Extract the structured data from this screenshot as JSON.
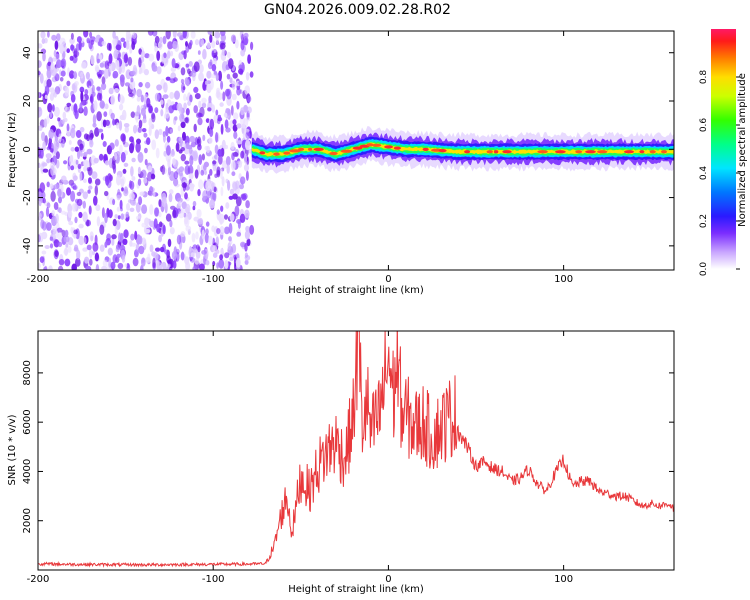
{
  "title": "GN04.2026.009.02.28.R02",
  "chart_data": [
    {
      "type": "heatmap",
      "xlabel": "Height of straight line (km)",
      "ylabel": "Frequency (Hz)",
      "xlim": [
        -200,
        163
      ],
      "ylim": [
        -50,
        49
      ],
      "xticks": [
        "-200",
        "-100",
        "0",
        "100"
      ],
      "xtick_values": [
        -200,
        -100,
        0,
        100
      ],
      "yticks": [
        "40",
        "20",
        "0",
        "-20",
        "-40"
      ],
      "ytick_values": [
        40,
        20,
        0,
        -20,
        -40
      ],
      "noise_region_x": [
        -200,
        -78
      ],
      "signal_ridge": {
        "x": [
          -78,
          -70,
          -60,
          -50,
          -40,
          -30,
          -20,
          -10,
          0,
          10,
          20,
          40,
          60,
          80,
          100,
          120,
          140,
          163
        ],
        "y": [
          0,
          -2,
          -2,
          0,
          0,
          -2,
          0,
          2,
          1,
          0,
          0,
          -1,
          -1,
          -1,
          -1,
          -1,
          -1,
          -1
        ]
      },
      "colorbar": {
        "label": "Normalized spectral amplitude",
        "range": [
          0,
          1
        ],
        "ticks": [
          "0.0",
          "0.2",
          "0.4",
          "0.6",
          "0.8"
        ],
        "tick_values": [
          0.0,
          0.2,
          0.4,
          0.6,
          0.8
        ]
      }
    },
    {
      "type": "line",
      "xlabel": "Height of straight line (km)",
      "ylabel": "SNR (10 * v/v)",
      "xlim": [
        -200,
        163
      ],
      "ylim": [
        0,
        9700
      ],
      "xticks": [
        "-200",
        "-100",
        "0",
        "100"
      ],
      "xtick_values": [
        -200,
        -100,
        0,
        100
      ],
      "yticks": [
        "2000",
        "4000",
        "6000",
        "8000"
      ],
      "ytick_values": [
        2000,
        4000,
        6000,
        8000
      ],
      "color": "#e8383b",
      "series": [
        {
          "x": [
            -200,
            -180,
            -160,
            -140,
            -120,
            -100,
            -80,
            -70,
            -65,
            -62,
            -58,
            -55,
            -50,
            -45,
            -40,
            -35,
            -30,
            -25,
            -20,
            -17,
            -15,
            -12,
            -10,
            -5,
            0,
            3,
            5,
            8,
            10,
            15,
            20,
            25,
            30,
            35,
            38,
            40,
            45,
            50,
            55,
            60,
            65,
            70,
            75,
            80,
            85,
            90,
            95,
            100,
            105,
            110,
            115,
            120,
            125,
            130,
            135,
            140,
            145,
            150,
            155,
            160,
            163
          ],
          "y": [
            250,
            230,
            220,
            210,
            220,
            230,
            240,
            260,
            1000,
            2000,
            3000,
            1500,
            3800,
            3200,
            4200,
            4800,
            5200,
            4500,
            6200,
            9700,
            5800,
            6800,
            5500,
            6300,
            8700,
            7000,
            8600,
            6200,
            6300,
            5800,
            6000,
            5400,
            5800,
            6200,
            6300,
            5600,
            5000,
            4200,
            4400,
            4100,
            4000,
            3600,
            3700,
            4100,
            3500,
            3200,
            3900,
            4500,
            3400,
            3600,
            3600,
            3200,
            3100,
            3000,
            3000,
            2800,
            2600,
            2700,
            2600,
            2700,
            2500
          ]
        }
      ]
    }
  ]
}
